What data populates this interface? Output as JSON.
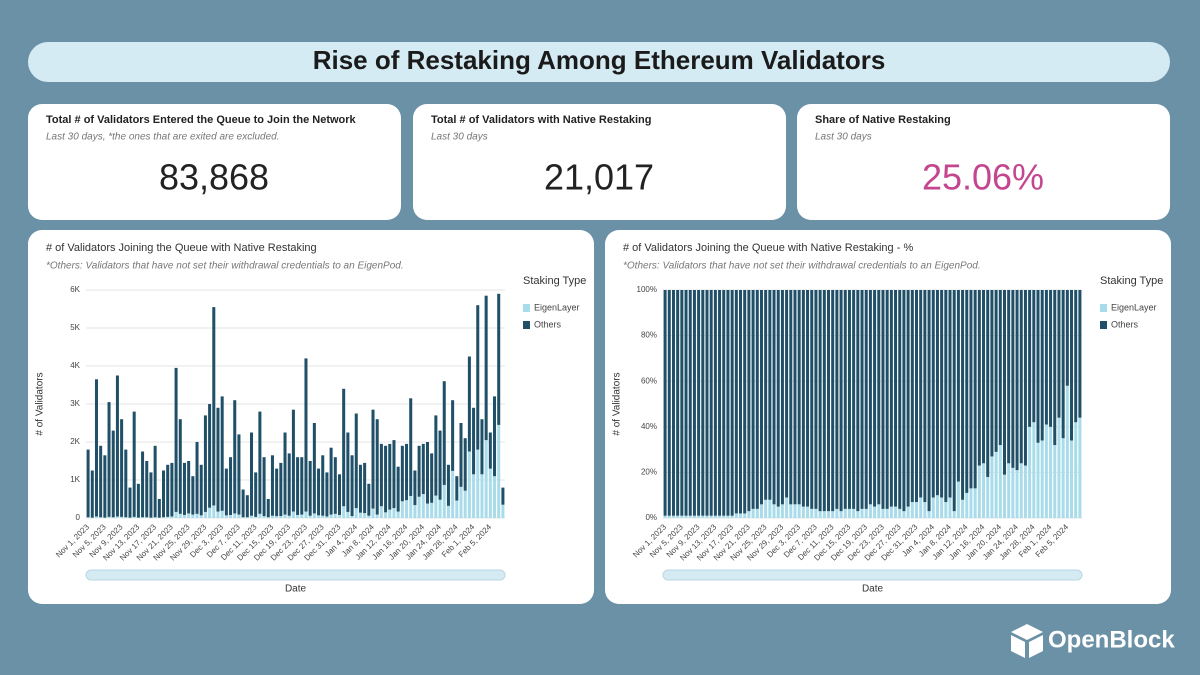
{
  "title": "Rise of Restaking Among Ethereum Validators",
  "kpis": [
    {
      "title": "Total # of Validators Entered the Queue to Join the Network",
      "subtitle": "Last 30 days, *the ones that are exited are excluded.",
      "value": "83,868"
    },
    {
      "title": "Total # of Validators with Native Restaking",
      "subtitle": "Last 30 days",
      "value": "21,017"
    },
    {
      "title": "Share of Native Restaking",
      "subtitle": "Last 30 days",
      "value": "25.06%"
    }
  ],
  "brand": "OpenBlock",
  "chart_data": [
    {
      "type": "bar",
      "stacked": true,
      "title": "# of Validators Joining the Queue with Native Restaking",
      "subtitle": "*Others: Validators that have not set their withdrawal credentials to an EigenPod.",
      "x_label": "Date",
      "y_label": "# of Validators",
      "legend_title": "Staking Type",
      "legend": "right",
      "categories": [
        "Nov 1, 2023",
        null,
        null,
        null,
        "Nov 5, 2023",
        null,
        null,
        null,
        "Nov 9, 2023",
        null,
        null,
        null,
        "Nov 13, 2023",
        null,
        null,
        null,
        "Nov 17, 2023",
        null,
        null,
        null,
        "Nov 21, 2023",
        null,
        null,
        null,
        "Nov 25, 2023",
        null,
        null,
        null,
        "Nov 29, 2023",
        null,
        null,
        null,
        "Dec 3, 2023",
        null,
        null,
        null,
        "Dec 7, 2023",
        null,
        null,
        null,
        "Dec 11, 2023",
        null,
        null,
        null,
        "Dec 15, 2023",
        null,
        null,
        null,
        "Dec 19, 2023",
        null,
        null,
        null,
        "Dec 23, 2023",
        null,
        null,
        null,
        "Dec 27, 2023",
        null,
        null,
        null,
        "Dec 31, 2023",
        null,
        null,
        null,
        "Jan 4, 2024",
        null,
        null,
        null,
        "Jan 8, 2024",
        null,
        null,
        null,
        "Jan 12, 2024",
        null,
        null,
        null,
        "Jan 16, 2024",
        null,
        null,
        null,
        "Jan 20, 2024",
        null,
        null,
        null,
        "Jan 24, 2024",
        null,
        null,
        null,
        "Jan 28, 2024",
        null,
        null,
        null,
        "Feb 1, 2024",
        null,
        null,
        null,
        "Feb 5, 2024",
        null,
        null,
        null
      ],
      "ylim": [
        0,
        6000
      ],
      "yticks": [
        0,
        {
          "value": 1000,
          "label": "1K"
        },
        {
          "value": 2000,
          "label": "2K"
        },
        {
          "value": 3000,
          "label": "3K"
        },
        {
          "value": 4000,
          "label": "4K"
        },
        {
          "value": 5000,
          "label": "5K"
        },
        {
          "value": 6000,
          "label": "6K"
        }
      ],
      "grid": true,
      "series": [
        {
          "name": "EigenLayer",
          "color": "#a9dcea",
          "values": [
            20,
            10,
            40,
            20,
            10,
            30,
            20,
            40,
            30,
            20,
            10,
            30,
            10,
            20,
            20,
            10,
            20,
            10,
            20,
            30,
            40,
            160,
            110,
            80,
            120,
            90,
            110,
            70,
            160,
            270,
            330,
            170,
            190,
            70,
            80,
            120,
            90,
            20,
            20,
            60,
            30,
            110,
            50,
            20,
            60,
            50,
            50,
            90,
            60,
            170,
            80,
            90,
            170,
            60,
            120,
            70,
            60,
            40,
            90,
            110,
            80,
            310,
            160,
            50,
            260,
            140,
            130,
            60,
            250,
            90,
            310,
            150,
            220,
            260,
            170,
            440,
            470,
            580,
            340,
            560,
            630,
            380,
            400,
            590,
            480,
            870,
            320,
            1240,
            460,
            820,
            720,
            1750,
            1150,
            1800,
            1150,
            2050,
            1300,
            1100,
            2450,
            350
          ]
        },
        {
          "name": "Others",
          "color": "#1f5068",
          "values": [
            1780,
            1240,
            3610,
            1880,
            1640,
            3020,
            2280,
            3710,
            2570,
            1780,
            790,
            2770,
            890,
            1730,
            1480,
            1190,
            1880,
            490,
            1230,
            1370,
            1410,
            3790,
            2490,
            1370,
            1380,
            1010,
            1890,
            1330,
            2540,
            2730,
            5220,
            2730,
            3010,
            1230,
            1520,
            2980,
            2110,
            730,
            580,
            2190,
            1170,
            2690,
            1550,
            480,
            1590,
            1250,
            1400,
            2160,
            1640,
            2680,
            1520,
            1510,
            4030,
            1440,
            2380,
            1230,
            1590,
            1160,
            1760,
            1490,
            1070,
            3090,
            2090,
            1600,
            2490,
            1260,
            1320,
            840,
            2600,
            2510,
            1640,
            1750,
            1730,
            1790,
            1180,
            1460,
            1480,
            2570,
            910,
            1340,
            1320,
            1620,
            1300,
            2110,
            1820,
            2730,
            1080,
            1860,
            640,
            1680,
            1380,
            2500,
            1750,
            3800,
            1450,
            3800,
            950,
            2100,
            3450,
            450
          ]
        }
      ]
    },
    {
      "type": "bar",
      "stacked": true,
      "title": "# of Validators Joining the Queue with Native Restaking - %",
      "subtitle": "*Others: Validators that have not set their withdrawal credentials to an EigenPod.",
      "x_label": "Date",
      "y_label": "# of Validators",
      "legend_title": "Staking Type",
      "legend": "right",
      "categories": [
        "Nov 1, 2023",
        null,
        null,
        null,
        "Nov 5, 2023",
        null,
        null,
        null,
        "Nov 9, 2023",
        null,
        null,
        null,
        "Nov 13, 2023",
        null,
        null,
        null,
        "Nov 17, 2023",
        null,
        null,
        null,
        "Nov 21, 2023",
        null,
        null,
        null,
        "Nov 25, 2023",
        null,
        null,
        null,
        "Nov 29, 2023",
        null,
        null,
        null,
        "Dec 3, 2023",
        null,
        null,
        null,
        "Dec 7, 2023",
        null,
        null,
        null,
        "Dec 11, 2023",
        null,
        null,
        null,
        "Dec 15, 2023",
        null,
        null,
        null,
        "Dec 19, 2023",
        null,
        null,
        null,
        "Dec 23, 2023",
        null,
        null,
        null,
        "Dec 27, 2023",
        null,
        null,
        null,
        "Dec 31, 2023",
        null,
        null,
        null,
        "Jan 4, 2024",
        null,
        null,
        null,
        "Jan 8, 2024",
        null,
        null,
        null,
        "Jan 12, 2024",
        null,
        null,
        null,
        "Jan 16, 2024",
        null,
        null,
        null,
        "Jan 20, 2024",
        null,
        null,
        null,
        "Jan 24, 2024",
        null,
        null,
        null,
        "Jan 28, 2024",
        null,
        null,
        null,
        "Feb 1, 2024",
        null,
        null,
        null,
        "Feb 5, 2024",
        null,
        null,
        null
      ],
      "ylim": [
        0,
        100
      ],
      "yticks": [
        {
          "value": 0,
          "label": "0%"
        },
        {
          "value": 20,
          "label": "20%"
        },
        {
          "value": 40,
          "label": "40%"
        },
        {
          "value": 60,
          "label": "60%"
        },
        {
          "value": 80,
          "label": "80%"
        },
        {
          "value": 100,
          "label": "100%"
        }
      ],
      "grid": true,
      "series": [
        {
          "name": "EigenLayer",
          "color": "#a9dcea",
          "values": [
            1,
            1,
            1,
            1,
            1,
            1,
            1,
            1,
            1,
            1,
            1,
            1,
            1,
            1,
            1,
            1,
            1,
            2,
            2,
            2,
            3,
            4,
            4,
            6,
            8,
            8,
            6,
            5,
            6,
            9,
            6,
            6,
            6,
            5,
            5,
            4,
            4,
            3,
            3,
            3,
            3,
            4,
            3,
            4,
            4,
            4,
            3,
            4,
            4,
            6,
            5,
            6,
            4,
            4,
            5,
            5,
            4,
            3,
            5,
            7,
            7,
            9,
            7,
            3,
            9,
            10,
            9,
            7,
            9,
            3,
            16,
            8,
            11,
            13,
            13,
            23,
            24,
            18,
            27,
            29,
            32,
            19,
            24,
            22,
            21,
            24,
            23,
            40,
            42,
            33,
            34,
            41,
            40,
            32,
            44,
            35,
            58,
            34,
            42,
            44
          ]
        },
        {
          "name": "Others",
          "color": "#1f5068",
          "values": [
            99,
            99,
            99,
            99,
            99,
            99,
            99,
            99,
            99,
            99,
            99,
            99,
            99,
            99,
            99,
            99,
            99,
            98,
            98,
            98,
            97,
            96,
            96,
            94,
            92,
            92,
            94,
            95,
            94,
            91,
            94,
            94,
            94,
            95,
            95,
            96,
            96,
            97,
            97,
            97,
            97,
            96,
            97,
            96,
            96,
            96,
            97,
            96,
            96,
            94,
            95,
            94,
            96,
            96,
            95,
            95,
            96,
            97,
            95,
            93,
            93,
            91,
            93,
            97,
            91,
            90,
            91,
            93,
            91,
            97,
            84,
            92,
            89,
            87,
            87,
            77,
            76,
            82,
            73,
            71,
            68,
            81,
            76,
            78,
            79,
            76,
            77,
            60,
            58,
            67,
            66,
            59,
            60,
            68,
            56,
            65,
            42,
            66,
            58,
            56
          ]
        }
      ]
    }
  ]
}
